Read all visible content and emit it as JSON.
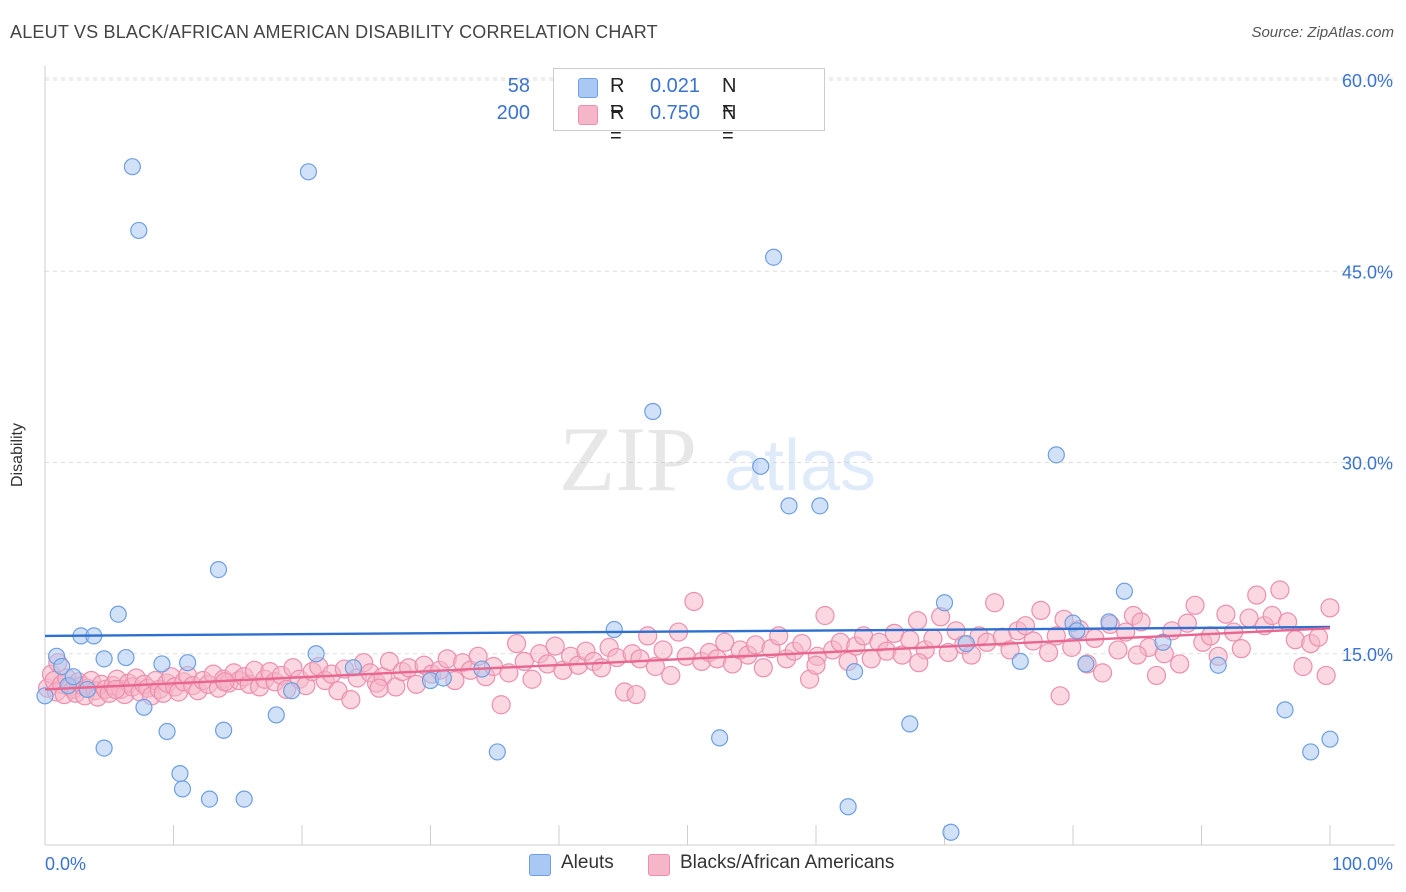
{
  "title": "ALEUT VS BLACK/AFRICAN AMERICAN DISABILITY CORRELATION CHART",
  "source": "Source: ZipAtlas.com",
  "watermark": {
    "zip": "ZIP",
    "atlas": "atlas"
  },
  "stats": [
    {
      "r_label": "R =",
      "r_value": "0.021",
      "n_label": "N =",
      "n_value": "58",
      "color": "#a9c8f3"
    },
    {
      "r_label": "R =",
      "r_value": "0.750",
      "n_label": "N =",
      "n_value": "200",
      "color": "#f6b6c9"
    }
  ],
  "legend": {
    "aleuts": "Aleuts",
    "blacks": "Blacks/African Americans"
  },
  "colors": {
    "aleut_fill": "#a9c8f3",
    "aleut_stroke": "#6f9fe0",
    "aleut_line": "#2f6fd0",
    "black_fill": "#f6b6c9",
    "black_stroke": "#ec8fae",
    "black_line": "#e8668f",
    "tick_label": "#3a73d0",
    "grid": "#dddddd"
  },
  "chart_data": {
    "type": "scatter",
    "title": "ALEUT VS BLACK/AFRICAN AMERICAN DISABILITY CORRELATION CHART",
    "xlabel": "",
    "ylabel": "Disability",
    "xlim": [
      0,
      100
    ],
    "ylim": [
      0,
      60
    ],
    "x_tick_labels": [
      "0.0%",
      "100.0%"
    ],
    "y_ticks": [
      15,
      30,
      45,
      60
    ],
    "y_tick_labels": [
      "15.0%",
      "30.0%",
      "45.0%",
      "60.0%"
    ],
    "grid": true,
    "legend_position": "bottom-center",
    "series": [
      {
        "name": "Aleuts",
        "r": 0.021,
        "n": 58,
        "trend": {
          "x": [
            0,
            100
          ],
          "y": [
            16.4,
            17.1
          ]
        },
        "points": [
          [
            0,
            11.7
          ],
          [
            0.9,
            14.8
          ],
          [
            1.3,
            14.0
          ],
          [
            1.8,
            12.5
          ],
          [
            2.2,
            13.2
          ],
          [
            2.8,
            16.4
          ],
          [
            3.3,
            12.2
          ],
          [
            3.8,
            16.4
          ],
          [
            4.6,
            7.6
          ],
          [
            4.6,
            14.6
          ],
          [
            5.7,
            18.1
          ],
          [
            6.3,
            14.7
          ],
          [
            6.8,
            53.2
          ],
          [
            7.3,
            48.2
          ],
          [
            7.7,
            10.8
          ],
          [
            9.1,
            14.2
          ],
          [
            9.5,
            8.9
          ],
          [
            10.5,
            5.6
          ],
          [
            10.7,
            4.4
          ],
          [
            11.1,
            14.3
          ],
          [
            12.8,
            3.6
          ],
          [
            13.5,
            21.6
          ],
          [
            13.9,
            9.0
          ],
          [
            15.5,
            3.6
          ],
          [
            18.0,
            10.2
          ],
          [
            19.2,
            12.1
          ],
          [
            20.5,
            52.8
          ],
          [
            21.1,
            15.0
          ],
          [
            24.0,
            13.9
          ],
          [
            30.0,
            12.9
          ],
          [
            31.0,
            13.1
          ],
          [
            34.0,
            13.8
          ],
          [
            35.2,
            7.3
          ],
          [
            44.3,
            16.9
          ],
          [
            47.3,
            34.0
          ],
          [
            52.5,
            8.4
          ],
          [
            55.7,
            29.7
          ],
          [
            56.7,
            46.1
          ],
          [
            57.9,
            26.6
          ],
          [
            60.3,
            26.6
          ],
          [
            62.5,
            3.0
          ],
          [
            63.0,
            13.6
          ],
          [
            67.3,
            9.5
          ],
          [
            70.0,
            19.0
          ],
          [
            70.5,
            1.0
          ],
          [
            71.7,
            15.8
          ],
          [
            75.9,
            14.4
          ],
          [
            78.7,
            30.6
          ],
          [
            80.0,
            17.4
          ],
          [
            80.3,
            16.8
          ],
          [
            81.0,
            14.2
          ],
          [
            82.8,
            17.5
          ],
          [
            84.0,
            19.9
          ],
          [
            87.0,
            15.9
          ],
          [
            91.3,
            14.1
          ],
          [
            96.5,
            10.6
          ],
          [
            98.5,
            7.3
          ],
          [
            100.0,
            8.3
          ]
        ]
      },
      {
        "name": "Blacks/African Americans",
        "r": 0.75,
        "n": 200,
        "trend": {
          "x": [
            0,
            100
          ],
          "y": [
            12.2,
            17.0
          ]
        },
        "points": [
          [
            0.2,
            12.3
          ],
          [
            0.5,
            13.4
          ],
          [
            0.7,
            12.9
          ],
          [
            0.9,
            12.0
          ],
          [
            1.0,
            14.3
          ],
          [
            1.3,
            12.6
          ],
          [
            1.5,
            11.8
          ],
          [
            1.7,
            13.1
          ],
          [
            2.0,
            12.4
          ],
          [
            2.2,
            12.2
          ],
          [
            2.4,
            11.9
          ],
          [
            2.6,
            12.8
          ],
          [
            2.9,
            12.5
          ],
          [
            3.1,
            11.7
          ],
          [
            3.3,
            12.3
          ],
          [
            3.6,
            12.9
          ],
          [
            3.9,
            12.1
          ],
          [
            4.1,
            11.6
          ],
          [
            4.4,
            12.6
          ],
          [
            4.7,
            12.2
          ],
          [
            5.0,
            11.9
          ],
          [
            5.3,
            12.5
          ],
          [
            5.6,
            13.0
          ],
          [
            5.9,
            12.2
          ],
          [
            6.2,
            11.8
          ],
          [
            6.5,
            12.7
          ],
          [
            6.8,
            12.4
          ],
          [
            7.1,
            13.1
          ],
          [
            7.4,
            12.0
          ],
          [
            7.7,
            12.6
          ],
          [
            8.0,
            12.3
          ],
          [
            8.3,
            11.7
          ],
          [
            8.6,
            12.9
          ],
          [
            8.9,
            12.2
          ],
          [
            9.2,
            11.9
          ],
          [
            9.5,
            12.7
          ],
          [
            9.8,
            13.2
          ],
          [
            10.1,
            12.4
          ],
          [
            10.4,
            12.0
          ],
          [
            10.8,
            12.8
          ],
          [
            11.1,
            13.3
          ],
          [
            11.5,
            12.5
          ],
          [
            11.9,
            12.1
          ],
          [
            12.3,
            12.9
          ],
          [
            12.7,
            12.6
          ],
          [
            13.1,
            13.4
          ],
          [
            13.5,
            12.3
          ],
          [
            13.9,
            13.0
          ],
          [
            14.3,
            12.7
          ],
          [
            14.7,
            13.5
          ],
          [
            15.1,
            12.9
          ],
          [
            15.5,
            13.2
          ],
          [
            15.9,
            12.6
          ],
          [
            16.3,
            13.7
          ],
          [
            16.7,
            12.4
          ],
          [
            17.1,
            13.0
          ],
          [
            17.5,
            13.6
          ],
          [
            17.9,
            12.8
          ],
          [
            18.4,
            13.3
          ],
          [
            18.8,
            12.2
          ],
          [
            19.3,
            13.9
          ],
          [
            19.8,
            13.0
          ],
          [
            20.3,
            12.5
          ],
          [
            20.8,
            13.6
          ],
          [
            21.3,
            14.0
          ],
          [
            21.8,
            12.9
          ],
          [
            22.3,
            13.4
          ],
          [
            22.8,
            12.1
          ],
          [
            23.3,
            13.8
          ],
          [
            23.8,
            11.4
          ],
          [
            24.3,
            13.1
          ],
          [
            24.8,
            14.3
          ],
          [
            25.3,
            13.5
          ],
          [
            25.8,
            12.7
          ],
          [
            26.3,
            13.2
          ],
          [
            26.8,
            14.4
          ],
          [
            27.3,
            12.4
          ],
          [
            27.8,
            13.6
          ],
          [
            28.3,
            13.9
          ],
          [
            28.9,
            12.6
          ],
          [
            29.5,
            14.1
          ],
          [
            30.1,
            13.4
          ],
          [
            30.7,
            13.7
          ],
          [
            31.3,
            14.6
          ],
          [
            31.9,
            12.9
          ],
          [
            32.5,
            14.3
          ],
          [
            33.1,
            13.7
          ],
          [
            33.7,
            14.8
          ],
          [
            34.3,
            13.2
          ],
          [
            34.9,
            14.0
          ],
          [
            35.5,
            11.0
          ],
          [
            36.1,
            13.5
          ],
          [
            36.7,
            15.8
          ],
          [
            37.3,
            14.4
          ],
          [
            37.9,
            13.0
          ],
          [
            38.5,
            15.0
          ],
          [
            39.1,
            14.2
          ],
          [
            39.7,
            15.6
          ],
          [
            40.3,
            13.7
          ],
          [
            40.9,
            14.8
          ],
          [
            41.5,
            14.1
          ],
          [
            42.1,
            15.2
          ],
          [
            42.7,
            14.4
          ],
          [
            43.3,
            13.9
          ],
          [
            43.9,
            15.5
          ],
          [
            44.5,
            14.7
          ],
          [
            45.1,
            12.0
          ],
          [
            45.7,
            15.0
          ],
          [
            46.3,
            14.6
          ],
          [
            46.9,
            16.4
          ],
          [
            47.5,
            14.0
          ],
          [
            48.1,
            15.3
          ],
          [
            48.7,
            13.3
          ],
          [
            49.3,
            16.7
          ],
          [
            49.9,
            14.8
          ],
          [
            50.5,
            19.1
          ],
          [
            51.1,
            14.4
          ],
          [
            51.7,
            15.1
          ],
          [
            52.3,
            14.6
          ],
          [
            52.9,
            15.9
          ],
          [
            53.5,
            14.2
          ],
          [
            54.1,
            15.3
          ],
          [
            54.7,
            14.9
          ],
          [
            55.3,
            15.7
          ],
          [
            55.9,
            13.9
          ],
          [
            56.5,
            15.4
          ],
          [
            57.1,
            16.4
          ],
          [
            57.7,
            14.6
          ],
          [
            58.3,
            15.2
          ],
          [
            58.9,
            15.8
          ],
          [
            59.5,
            13.0
          ],
          [
            60.1,
            14.8
          ],
          [
            60.7,
            18.0
          ],
          [
            61.3,
            15.3
          ],
          [
            61.9,
            15.9
          ],
          [
            62.5,
            14.4
          ],
          [
            63.1,
            15.6
          ],
          [
            63.7,
            16.4
          ],
          [
            64.3,
            14.6
          ],
          [
            64.9,
            15.9
          ],
          [
            65.5,
            15.2
          ],
          [
            66.1,
            16.6
          ],
          [
            66.7,
            14.9
          ],
          [
            67.3,
            16.1
          ],
          [
            67.9,
            17.6
          ],
          [
            68.5,
            15.3
          ],
          [
            69.1,
            16.2
          ],
          [
            69.7,
            17.9
          ],
          [
            70.3,
            15.1
          ],
          [
            70.9,
            16.8
          ],
          [
            71.5,
            15.7
          ],
          [
            72.1,
            14.9
          ],
          [
            72.7,
            16.4
          ],
          [
            73.3,
            15.9
          ],
          [
            73.9,
            19.0
          ],
          [
            74.5,
            16.3
          ],
          [
            75.1,
            15.3
          ],
          [
            75.7,
            16.8
          ],
          [
            76.3,
            17.2
          ],
          [
            76.9,
            16.0
          ],
          [
            77.5,
            18.4
          ],
          [
            78.1,
            15.1
          ],
          [
            78.7,
            16.4
          ],
          [
            79.3,
            17.7
          ],
          [
            79.9,
            15.5
          ],
          [
            80.5,
            16.9
          ],
          [
            81.1,
            14.2
          ],
          [
            81.7,
            16.2
          ],
          [
            82.3,
            13.5
          ],
          [
            82.9,
            17.3
          ],
          [
            83.5,
            15.3
          ],
          [
            84.1,
            16.7
          ],
          [
            84.7,
            18.0
          ],
          [
            85.3,
            17.5
          ],
          [
            85.9,
            15.5
          ],
          [
            86.5,
            13.3
          ],
          [
            87.1,
            15.0
          ],
          [
            87.7,
            16.8
          ],
          [
            88.3,
            14.2
          ],
          [
            88.9,
            17.4
          ],
          [
            89.5,
            18.8
          ],
          [
            90.1,
            15.9
          ],
          [
            90.7,
            16.4
          ],
          [
            91.3,
            14.8
          ],
          [
            91.9,
            18.1
          ],
          [
            92.5,
            16.7
          ],
          [
            93.1,
            15.4
          ],
          [
            93.7,
            17.8
          ],
          [
            94.3,
            19.6
          ],
          [
            94.9,
            17.2
          ],
          [
            95.5,
            18.0
          ],
          [
            96.1,
            20.0
          ],
          [
            96.7,
            17.5
          ],
          [
            97.3,
            16.1
          ],
          [
            97.9,
            14.0
          ],
          [
            98.5,
            15.8
          ],
          [
            99.1,
            16.3
          ],
          [
            99.7,
            13.3
          ],
          [
            100.0,
            18.6
          ],
          [
            5.5,
            12.2
          ],
          [
            14.0,
            12.8
          ],
          [
            26.0,
            12.3
          ],
          [
            46.0,
            11.8
          ],
          [
            60.0,
            14.1
          ],
          [
            68.0,
            14.3
          ],
          [
            79.0,
            11.7
          ],
          [
            85.0,
            14.9
          ]
        ]
      }
    ]
  }
}
